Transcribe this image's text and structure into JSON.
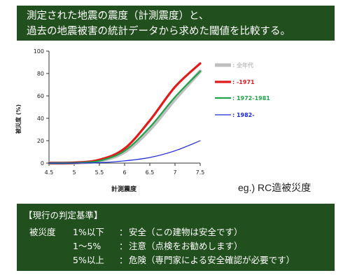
{
  "banner": {
    "line1": "測定された地震の震度（計測震度）と、",
    "line2": "過去の地震被害の統計データから求めた閾値を比較する。"
  },
  "chart_data": {
    "type": "line",
    "title": "",
    "xlabel": "計測震度",
    "ylabel": "被災度 (%)",
    "xlim": [
      4.5,
      7.5
    ],
    "ylim": [
      0,
      100
    ],
    "x_ticks": [
      "4.5",
      "5",
      "5.5",
      "6",
      "6.5",
      "7",
      "7.5"
    ],
    "y_ticks": [
      "0",
      "20",
      "40",
      "60",
      "80",
      "100"
    ],
    "grid": false,
    "legend_position": "right",
    "x": [
      4.5,
      5.0,
      5.5,
      6.0,
      6.5,
      7.0,
      7.5
    ],
    "series": [
      {
        "name": ": 全年代",
        "color": "#bfbfbf",
        "values": [
          0.0,
          0.2,
          2,
          10,
          30,
          57,
          82
        ]
      },
      {
        "name": ": -1971",
        "color": "#e21a1a",
        "values": [
          0.0,
          0.3,
          3,
          13,
          38,
          68,
          89
        ]
      },
      {
        "name": ": 1972-1981",
        "color": "#1fa34a",
        "values": [
          0.0,
          0.2,
          2,
          11,
          32,
          59,
          82
        ]
      },
      {
        "name": ": 1982-",
        "color": "#1a28d8",
        "values": [
          0.0,
          0.0,
          0.4,
          2,
          5,
          11,
          20
        ]
      }
    ]
  },
  "note": "eg.) RC造被災度",
  "criteria": {
    "header": "【現行の判定基準】",
    "label": "被災度",
    "rows": [
      {
        "range": "1%以下",
        "colon": "：",
        "text": "安全（この建物は安全です）"
      },
      {
        "range": "1～5%",
        "colon": "：",
        "text": "注意（点検をお勧めします）"
      },
      {
        "range": "5%以上",
        "colon": "：",
        "text": "危険（専門家による安全確認が必要です）"
      }
    ]
  }
}
